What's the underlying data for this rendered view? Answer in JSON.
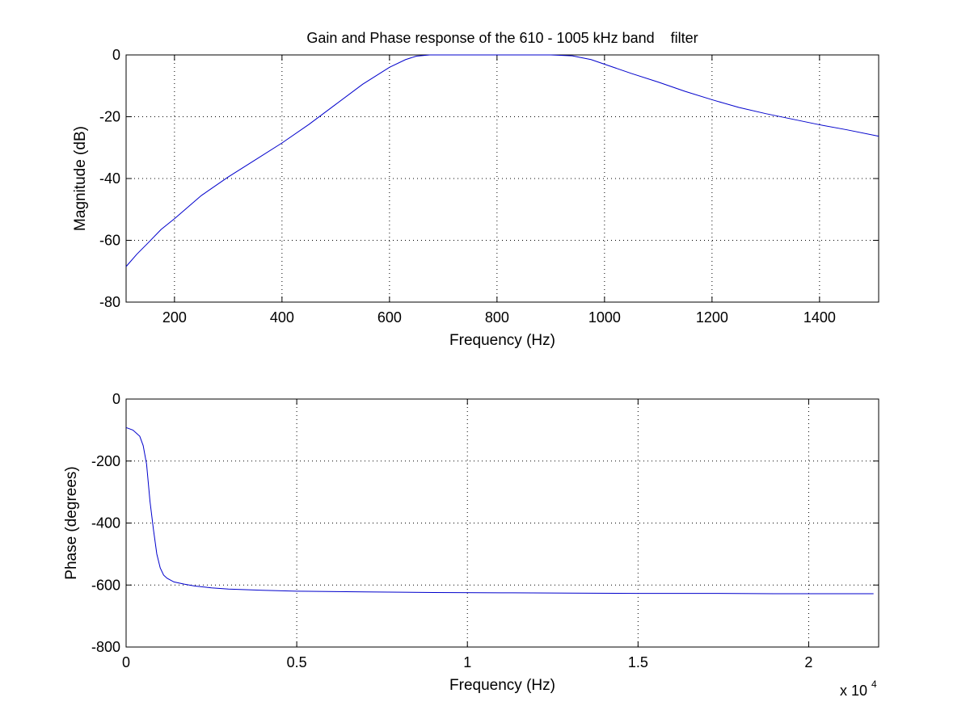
{
  "chart_data": [
    {
      "type": "line",
      "title": "Gain and Phase response of the 610 - 1005 kHz band    filter",
      "xlabel": "Frequency (Hz)",
      "ylabel": "Magnitude (dB)",
      "xlim": [
        110,
        1510
      ],
      "ylim": [
        -80,
        0
      ],
      "xticks": [
        200,
        400,
        600,
        800,
        1000,
        1200,
        1400
      ],
      "yticks": [
        -80,
        -60,
        -40,
        -20,
        0
      ],
      "xtick_labels": [
        "200",
        "400",
        "600",
        "800",
        "1000",
        "1200",
        "1400"
      ],
      "ytick_labels": [
        "-80",
        "-60",
        "-40",
        "-20",
        "0"
      ],
      "grid": true,
      "line_color": "#0000cc",
      "series": [
        {
          "x": [
            110,
            130,
            150,
            175,
            200,
            250,
            300,
            350,
            400,
            450,
            500,
            550,
            600,
            630,
            650,
            675,
            700,
            750,
            800,
            850,
            900,
            940,
            975,
            1000,
            1050,
            1100,
            1150,
            1200,
            1250,
            1300,
            1350,
            1400,
            1450,
            1510
          ],
          "y": [
            -68.5,
            -64.5,
            -61,
            -56.5,
            -53,
            -45.5,
            -39.5,
            -34,
            -28.5,
            -22.5,
            -16,
            -9.5,
            -4,
            -1.5,
            -0.4,
            0,
            0,
            0,
            0,
            0,
            0,
            -0.3,
            -1.5,
            -3,
            -6,
            -8.8,
            -11.8,
            -14.5,
            -17,
            -19,
            -20.8,
            -22.6,
            -24.2,
            -26.3
          ]
        }
      ]
    },
    {
      "type": "line",
      "xlabel": "Frequency (Hz)",
      "ylabel": "Phase (degrees)",
      "xlim": [
        0,
        22050
      ],
      "ylim": [
        -800,
        0
      ],
      "xticks": [
        0,
        5000,
        10000,
        15000,
        20000
      ],
      "yticks": [
        -800,
        -600,
        -400,
        -200,
        0
      ],
      "xtick_labels": [
        "0",
        "0.5",
        "1",
        "1.5",
        "2"
      ],
      "ytick_labels": [
        "-800",
        "-600",
        "-400",
        "-200",
        "0"
      ],
      "x_exponent_label": "x 10",
      "x_exponent": "4",
      "grid": true,
      "line_color": "#0000cc",
      "series": [
        {
          "x": [
            0,
            200,
            400,
            500,
            600,
            700,
            800,
            900,
            1000,
            1100,
            1200,
            1400,
            1700,
            2000,
            2500,
            3000,
            4000,
            5000,
            7000,
            9000,
            11000,
            13000,
            15000,
            17000,
            19000,
            21000,
            21900
          ],
          "y": [
            -92,
            -100,
            -120,
            -150,
            -210,
            -330,
            -420,
            -500,
            -545,
            -568,
            -578,
            -590,
            -597,
            -603,
            -609,
            -613,
            -617,
            -620,
            -622,
            -624,
            -625,
            -626,
            -627,
            -627,
            -628,
            -628,
            -628
          ]
        }
      ]
    }
  ]
}
